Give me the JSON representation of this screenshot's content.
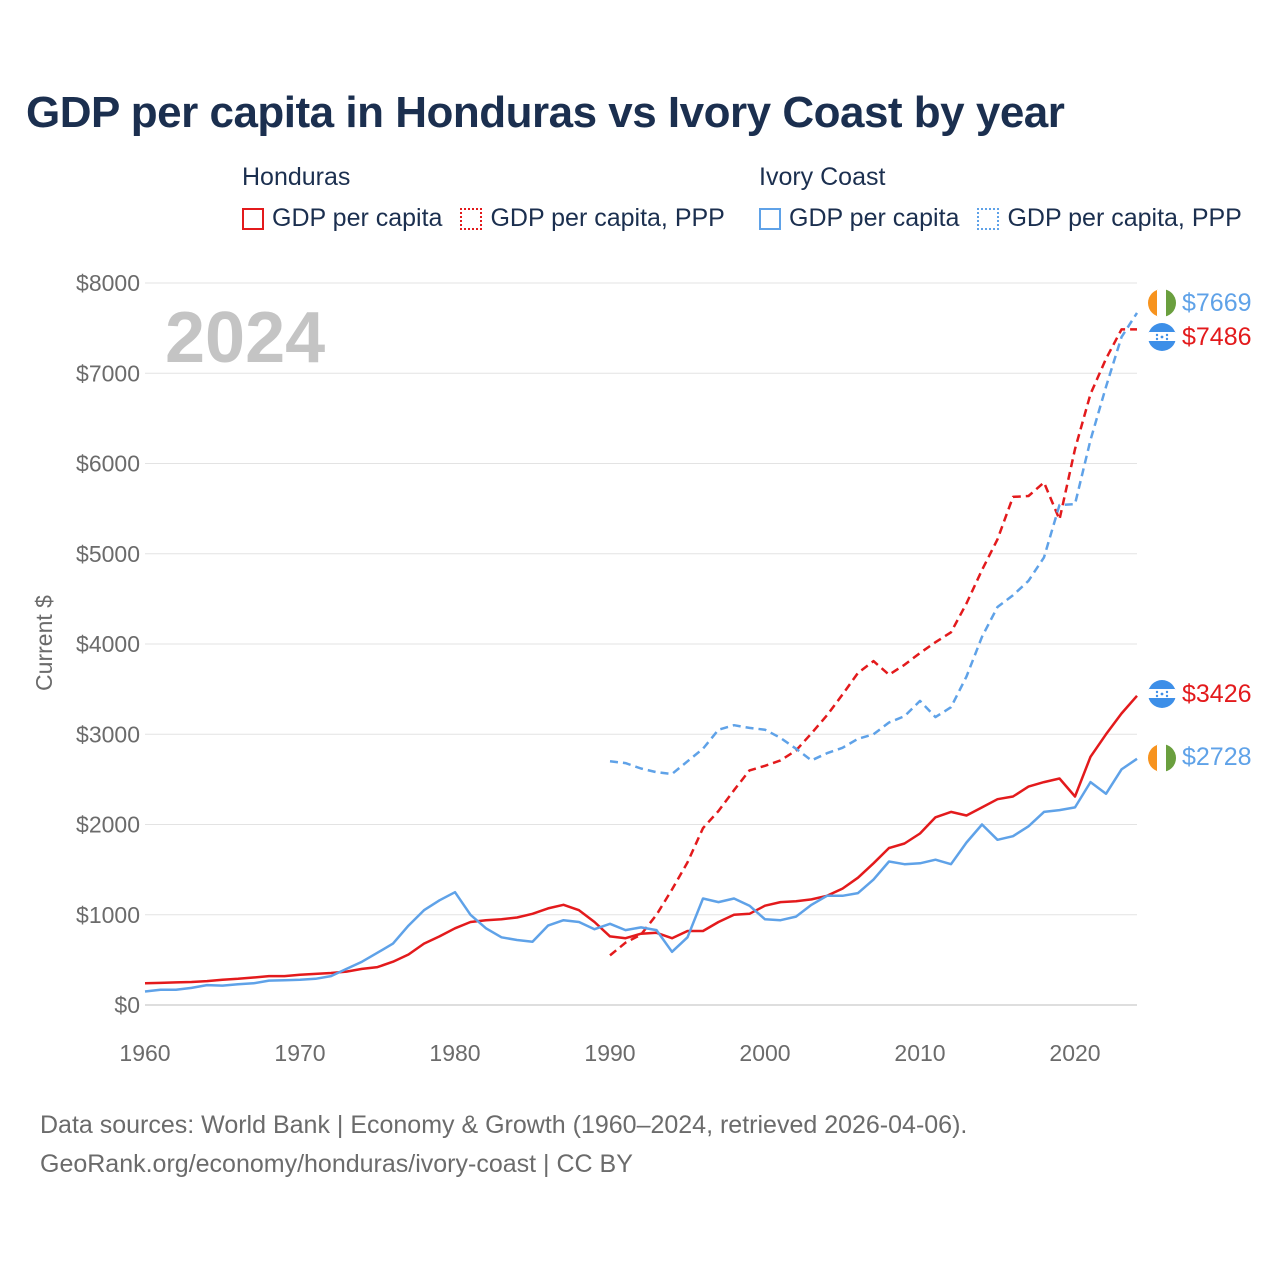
{
  "title": "GDP per capita in Honduras vs Ivory Coast by year",
  "legend": {
    "honduras": {
      "name": "Honduras",
      "gdp": "GDP per capita",
      "ppp": "GDP per capita, PPP"
    },
    "ivory": {
      "name": "Ivory Coast",
      "gdp": "GDP per capita",
      "ppp": "GDP per capita, PPP"
    }
  },
  "colors": {
    "honduras": "#e31a1c",
    "ivory": "#5fa2e8",
    "grid": "#e3e3e3",
    "axis_text": "#6b6b6b",
    "year_watermark": "#c4c4c4"
  },
  "end_labels": {
    "ivory_ppp": "$7669",
    "honduras_ppp": "$7486",
    "honduras_gdp": "$3426",
    "ivory_gdp": "$2728"
  },
  "footer": {
    "line1": "Data sources: World Bank | Economy & Growth (1960–2024, retrieved 2026-04-06).",
    "line2": "GeoRank.org/economy/honduras/ivory-coast | CC BY"
  },
  "chart_data": {
    "type": "line",
    "year_watermark": "2024",
    "ylabel": "Current $",
    "xlabel": "",
    "xlim": [
      1960,
      2024
    ],
    "ylim": [
      0,
      8000
    ],
    "x_ticks": [
      1960,
      1970,
      1980,
      1990,
      2000,
      2010,
      2020
    ],
    "y_ticks": [
      0,
      1000,
      2000,
      3000,
      4000,
      5000,
      6000,
      7000,
      8000
    ],
    "y_tick_labels": [
      "$0",
      "$1000",
      "$2000",
      "$3000",
      "$4000",
      "$5000",
      "$6000",
      "$7000",
      "$8000"
    ],
    "x_tick_labels": [
      "1960",
      "1970",
      "1980",
      "1990",
      "2000",
      "2010",
      "2020"
    ],
    "series": [
      {
        "name": "Honduras GDP per capita",
        "country": "honduras",
        "style": "solid",
        "x": [
          1960,
          1961,
          1962,
          1963,
          1964,
          1965,
          1966,
          1967,
          1968,
          1969,
          1970,
          1971,
          1972,
          1973,
          1974,
          1975,
          1976,
          1977,
          1978,
          1979,
          1980,
          1981,
          1982,
          1983,
          1984,
          1985,
          1986,
          1987,
          1988,
          1989,
          1990,
          1991,
          1992,
          1993,
          1994,
          1995,
          1996,
          1997,
          1998,
          1999,
          2000,
          2001,
          2002,
          2003,
          2004,
          2005,
          2006,
          2007,
          2008,
          2009,
          2010,
          2011,
          2012,
          2013,
          2014,
          2015,
          2016,
          2017,
          2018,
          2019,
          2020,
          2021,
          2022,
          2023,
          2024
        ],
        "values": [
          240,
          245,
          250,
          255,
          265,
          280,
          290,
          305,
          320,
          320,
          335,
          345,
          355,
          370,
          400,
          420,
          480,
          560,
          680,
          760,
          850,
          920,
          940,
          950,
          970,
          1010,
          1070,
          1110,
          1050,
          920,
          760,
          740,
          790,
          800,
          740,
          820,
          820,
          920,
          1000,
          1010,
          1100,
          1140,
          1150,
          1170,
          1210,
          1290,
          1410,
          1570,
          1740,
          1790,
          1900,
          2080,
          2140,
          2100,
          2190,
          2280,
          2310,
          2420,
          2470,
          2510,
          2310,
          2750,
          3000,
          3230,
          3426
        ]
      },
      {
        "name": "Honduras GDP per capita, PPP",
        "country": "honduras",
        "style": "dashed",
        "x": [
          1990,
          1991,
          1992,
          1993,
          1994,
          1995,
          1996,
          1997,
          1998,
          1999,
          2000,
          2001,
          2002,
          2003,
          2004,
          2005,
          2006,
          2007,
          2008,
          2009,
          2010,
          2011,
          2012,
          2013,
          2014,
          2015,
          2016,
          2017,
          2018,
          2019,
          2020,
          2021,
          2022,
          2023,
          2024
        ],
        "values": [
          550,
          690,
          780,
          1000,
          1280,
          1580,
          1960,
          2150,
          2380,
          2600,
          2650,
          2710,
          2820,
          3010,
          3210,
          3440,
          3680,
          3810,
          3660,
          3770,
          3900,
          4020,
          4130,
          4450,
          4820,
          5160,
          5630,
          5640,
          5790,
          5380,
          6160,
          6770,
          7160,
          7486,
          7486
        ]
      },
      {
        "name": "Ivory Coast GDP per capita",
        "country": "ivory",
        "style": "solid",
        "x": [
          1960,
          1961,
          1962,
          1963,
          1964,
          1965,
          1966,
          1967,
          1968,
          1969,
          1970,
          1971,
          1972,
          1973,
          1974,
          1975,
          1976,
          1977,
          1978,
          1979,
          1980,
          1981,
          1982,
          1983,
          1984,
          1985,
          1986,
          1987,
          1988,
          1989,
          1990,
          1991,
          1992,
          1993,
          1994,
          1995,
          1996,
          1997,
          1998,
          1999,
          2000,
          2001,
          2002,
          2003,
          2004,
          2005,
          2006,
          2007,
          2008,
          2009,
          2010,
          2011,
          2012,
          2013,
          2014,
          2015,
          2016,
          2017,
          2018,
          2019,
          2020,
          2021,
          2022,
          2023,
          2024
        ],
        "values": [
          150,
          170,
          170,
          190,
          220,
          215,
          230,
          240,
          270,
          275,
          280,
          290,
          320,
          400,
          480,
          580,
          680,
          880,
          1050,
          1160,
          1250,
          1000,
          850,
          750,
          720,
          700,
          880,
          940,
          920,
          840,
          900,
          830,
          860,
          830,
          590,
          750,
          1180,
          1140,
          1180,
          1100,
          950,
          940,
          980,
          1110,
          1210,
          1210,
          1240,
          1390,
          1590,
          1560,
          1570,
          1610,
          1560,
          1800,
          2000,
          1830,
          1870,
          1980,
          2140,
          2160,
          2190,
          2470,
          2340,
          2610,
          2728
        ]
      },
      {
        "name": "Ivory Coast GDP per capita, PPP",
        "country": "ivory",
        "style": "dashed",
        "x": [
          1990,
          1991,
          1992,
          1993,
          1994,
          1995,
          1996,
          1997,
          1998,
          1999,
          2000,
          2001,
          2002,
          2003,
          2004,
          2005,
          2006,
          2007,
          2008,
          2009,
          2010,
          2011,
          2012,
          2013,
          2014,
          2015,
          2016,
          2017,
          2018,
          2019,
          2020,
          2021,
          2022,
          2023,
          2024
        ],
        "values": [
          2700,
          2680,
          2620,
          2580,
          2560,
          2700,
          2840,
          3050,
          3100,
          3070,
          3050,
          2960,
          2840,
          2710,
          2790,
          2850,
          2950,
          3000,
          3130,
          3200,
          3370,
          3190,
          3300,
          3640,
          4080,
          4410,
          4540,
          4700,
          4960,
          5540,
          5550,
          6260,
          6850,
          7400,
          7669
        ]
      }
    ]
  }
}
